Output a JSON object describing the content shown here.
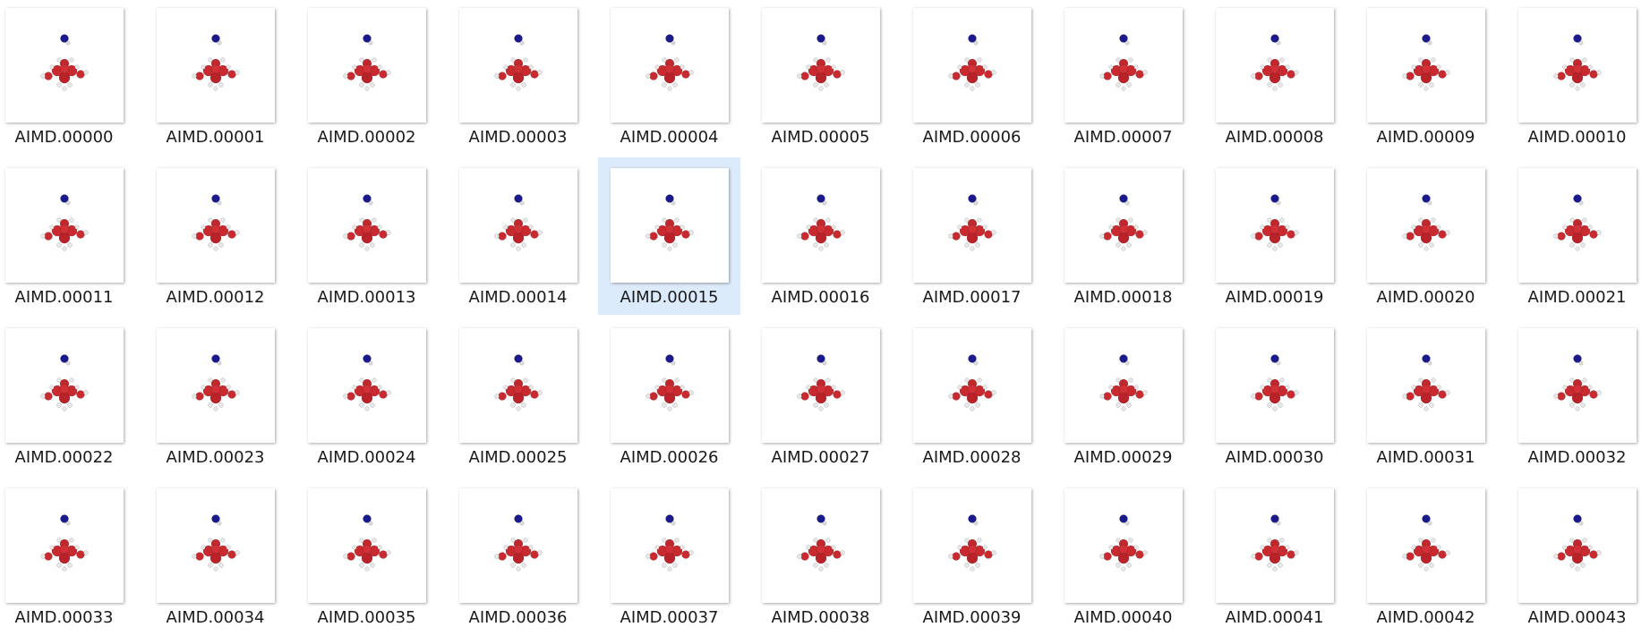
{
  "files": [
    {
      "name": "AIMD.00000"
    },
    {
      "name": "AIMD.00001"
    },
    {
      "name": "AIMD.00002"
    },
    {
      "name": "AIMD.00003"
    },
    {
      "name": "AIMD.00004"
    },
    {
      "name": "AIMD.00005"
    },
    {
      "name": "AIMD.00006"
    },
    {
      "name": "AIMD.00007"
    },
    {
      "name": "AIMD.00008"
    },
    {
      "name": "AIMD.00009"
    },
    {
      "name": "AIMD.00010"
    },
    {
      "name": "AIMD.00011"
    },
    {
      "name": "AIMD.00012"
    },
    {
      "name": "AIMD.00013"
    },
    {
      "name": "AIMD.00014"
    },
    {
      "name": "AIMD.00015",
      "selected": true
    },
    {
      "name": "AIMD.00016"
    },
    {
      "name": "AIMD.00017"
    },
    {
      "name": "AIMD.00018"
    },
    {
      "name": "AIMD.00019"
    },
    {
      "name": "AIMD.00020"
    },
    {
      "name": "AIMD.00021"
    },
    {
      "name": "AIMD.00022"
    },
    {
      "name": "AIMD.00023"
    },
    {
      "name": "AIMD.00024"
    },
    {
      "name": "AIMD.00025"
    },
    {
      "name": "AIMD.00026"
    },
    {
      "name": "AIMD.00027"
    },
    {
      "name": "AIMD.00028"
    },
    {
      "name": "AIMD.00029"
    },
    {
      "name": "AIMD.00030"
    },
    {
      "name": "AIMD.00031"
    },
    {
      "name": "AIMD.00032"
    },
    {
      "name": "AIMD.00033"
    },
    {
      "name": "AIMD.00034"
    },
    {
      "name": "AIMD.00035"
    },
    {
      "name": "AIMD.00036"
    },
    {
      "name": "AIMD.00037"
    },
    {
      "name": "AIMD.00038"
    },
    {
      "name": "AIMD.00039"
    },
    {
      "name": "AIMD.00040"
    },
    {
      "name": "AIMD.00041"
    },
    {
      "name": "AIMD.00042"
    },
    {
      "name": "AIMD.00043"
    }
  ]
}
